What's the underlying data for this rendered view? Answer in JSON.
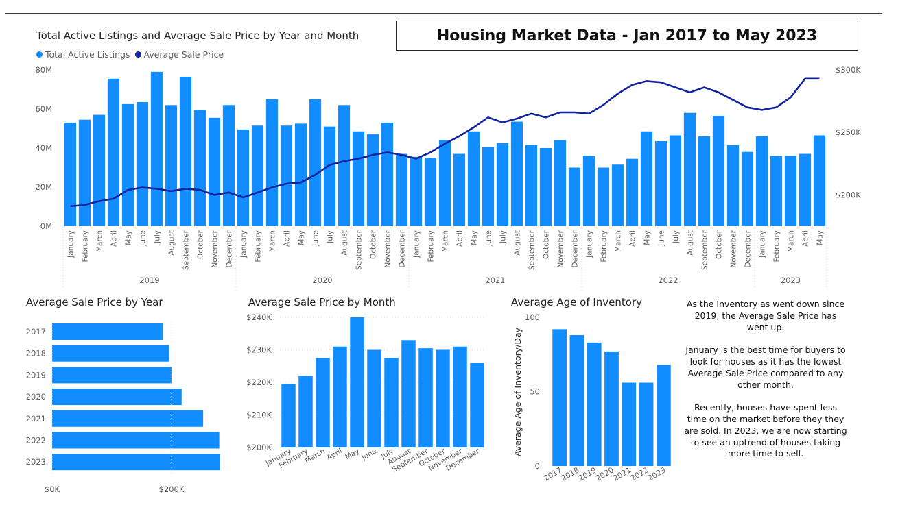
{
  "header": {
    "title": "Housing Market Data - Jan 2017 to May 2023"
  },
  "colors": {
    "bar": "#118DFF",
    "line": "#12239E",
    "axis_text": "#605E5C",
    "grid": "#E1DFDD"
  },
  "insight": {
    "paragraphs": [
      "As the Inventory as went down since 2019, the Average Sale Price has went up.",
      "January is the best time for buyers to look for houses as it has the lowest Average Sale Price compared to any other month.",
      "Recently, houses have spent less time on the market before they they are sold. In 2023, we are now starting to see an uptrend of houses taking more time to sell."
    ]
  },
  "chart_data": [
    {
      "type": "bar",
      "title": "Total Active Listings and Average Sale Price by Year and Month",
      "legend": [
        "Total Active Listings",
        "Average Sale Price"
      ],
      "legend_position": "top-left",
      "years": [
        {
          "label": "2019",
          "count": 12
        },
        {
          "label": "2020",
          "count": 12
        },
        {
          "label": "2021",
          "count": 12
        },
        {
          "label": "2022",
          "count": 12
        },
        {
          "label": "2023",
          "count": 5
        }
      ],
      "categories": [
        "January",
        "February",
        "March",
        "April",
        "May",
        "June",
        "July",
        "August",
        "September",
        "October",
        "November",
        "December",
        "January",
        "February",
        "March",
        "April",
        "May",
        "June",
        "July",
        "August",
        "September",
        "October",
        "November",
        "December",
        "January",
        "February",
        "March",
        "April",
        "May",
        "June",
        "July",
        "August",
        "September",
        "October",
        "November",
        "December",
        "January",
        "February",
        "March",
        "April",
        "May",
        "June",
        "July",
        "August",
        "September",
        "October",
        "November",
        "December",
        "January",
        "February",
        "March",
        "April",
        "May"
      ],
      "series": [
        {
          "name": "Total Active Listings",
          "axis": "left",
          "values": [
            53,
            54.5,
            57,
            75.5,
            62.5,
            63.5,
            79,
            62,
            76.5,
            59.5,
            55.5,
            62,
            49.5,
            51.5,
            65,
            51.5,
            52.5,
            65,
            51,
            62,
            48.5,
            47,
            53,
            37,
            35.5,
            35,
            44,
            37,
            48.5,
            40.5,
            42.5,
            53.5,
            41.5,
            40,
            44,
            30,
            36,
            30,
            31.5,
            34.5,
            48.5,
            43.5,
            46.5,
            58,
            46,
            56.5,
            41.5,
            38,
            46,
            36,
            36,
            37,
            46.5
          ]
        },
        {
          "name": "Average Sale Price",
          "axis": "right",
          "type": "line",
          "values": [
            191,
            192,
            195,
            197,
            204,
            206,
            205,
            203,
            205,
            204,
            200,
            202,
            198,
            202,
            206,
            209,
            210,
            216,
            224,
            227,
            229,
            232,
            234,
            232,
            229,
            234,
            241,
            247,
            254,
            262,
            258,
            261,
            265,
            262,
            266,
            266,
            265,
            272,
            281,
            288,
            291,
            290,
            286,
            282,
            286,
            282,
            276,
            270,
            268,
            270,
            278,
            293,
            293
          ]
        }
      ],
      "ylim_left": [
        0,
        80
      ],
      "yticks_left": [
        "0M",
        "20M",
        "40M",
        "60M",
        "80M"
      ],
      "ylim_right": [
        175,
        300
      ],
      "yticks_right": [
        "$200K",
        "$250K",
        "$300K"
      ]
    },
    {
      "type": "bar",
      "orientation": "horizontal",
      "title": "Average Sale Price by Year",
      "categories": [
        "2017",
        "2018",
        "2019",
        "2020",
        "2021",
        "2022",
        "2023"
      ],
      "values": [
        185,
        196,
        200,
        217,
        253,
        280,
        281
      ],
      "xlim": [
        0,
        300
      ],
      "xticks": [
        "$0K",
        "$200K"
      ]
    },
    {
      "type": "bar",
      "title": "Average Sale Price by Month",
      "categories": [
        "January",
        "February",
        "March",
        "April",
        "May",
        "June",
        "July",
        "August",
        "September",
        "October",
        "November",
        "December"
      ],
      "values": [
        219.5,
        222,
        227.5,
        231,
        240,
        230,
        227.5,
        233,
        230.5,
        230,
        231,
        226
      ],
      "ylim": [
        200,
        240
      ],
      "yticks": [
        "$200K",
        "$210K",
        "$220K",
        "$230K",
        "$240K"
      ]
    },
    {
      "type": "bar",
      "title": "Average Age of Inventory",
      "ylabel": "Average Age of Inventory/Day",
      "categories": [
        "2017",
        "2018",
        "2019",
        "2020",
        "2021",
        "2022",
        "2023"
      ],
      "values": [
        92,
        88,
        83,
        77,
        56,
        56,
        68
      ],
      "ylim": [
        0,
        100
      ],
      "yticks": [
        "0",
        "50",
        "100"
      ]
    }
  ]
}
